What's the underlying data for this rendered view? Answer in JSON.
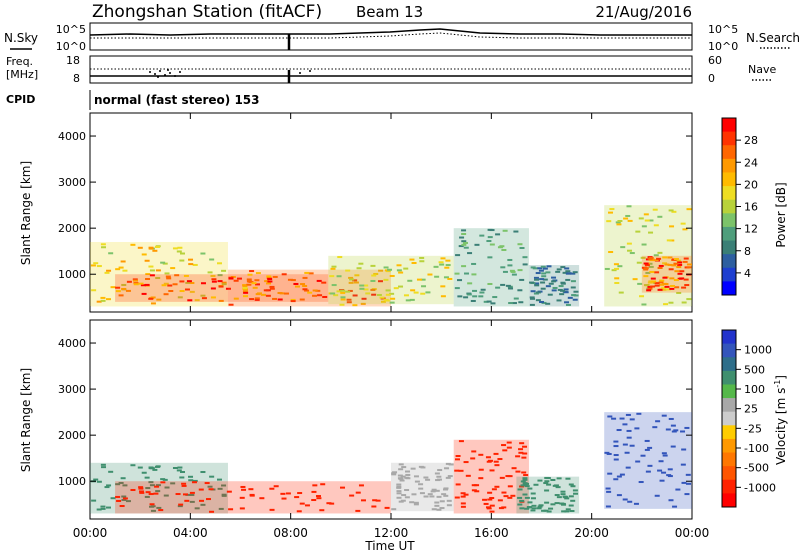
{
  "header": {
    "title": "Zhongshan Station (fitACF)",
    "beam": "Beam 13",
    "date": "21/Aug/2016"
  },
  "noise_panel": {
    "left_label": "N.Sky",
    "left_ticks": [
      "10^5",
      "10^0"
    ],
    "right_ticks": [
      "10^5",
      "10^0"
    ],
    "right_label": "N.Search"
  },
  "freq_panel": {
    "left_label_line1": "Freq.",
    "left_label_line2": "[MHz]",
    "left_ticks": [
      "18",
      "8"
    ],
    "right_ticks": [
      "60",
      "0"
    ],
    "right_label": "Nave"
  },
  "cpid": {
    "label": "CPID",
    "text": "normal (fast stereo) 153"
  },
  "x_axis": {
    "label": "Time UT",
    "ticks": [
      "00:00",
      "04:00",
      "08:00",
      "12:00",
      "16:00",
      "20:00",
      "00:00"
    ]
  },
  "colorbars": {
    "power": {
      "label": "Power [dB]",
      "ticks": [
        "28",
        "24",
        "20",
        "16",
        "12",
        "8",
        "4"
      ],
      "colors": [
        "#ff0000",
        "#ff3300",
        "#ff6600",
        "#ff9900",
        "#ffbb00",
        "#eedd22",
        "#b8d23a",
        "#7cc36a",
        "#4f9e7c",
        "#3a7f76",
        "#2d5fa0",
        "#1e3fd0",
        "#0000ff"
      ]
    },
    "velocity": {
      "label_main": "Velocity",
      "label_unit": "[m s",
      "label_exp": "-1",
      "label_close": "]",
      "ticks": [
        "1000",
        "500",
        "100",
        "25",
        "-25",
        "-100",
        "-500",
        "-1000"
      ],
      "colors": [
        "#2233cc",
        "#3355bb",
        "#2e6e8a",
        "#3f8f6e",
        "#55b84a",
        "#a8a8a8",
        "#cccccc",
        "#ffcc00",
        "#ff9900",
        "#ff7700",
        "#ff5500",
        "#ff2200",
        "#ff0000"
      ]
    }
  },
  "chart_data": [
    {
      "type": "heatmap",
      "title": "Power",
      "xlabel": "Time UT",
      "ylabel": "Slant Range [km]",
      "xlim": [
        "00:00",
        "24:00"
      ],
      "ylim": [
        180,
        4500
      ],
      "y_ticks": [
        1000,
        2000,
        3000,
        4000
      ],
      "colorbar_ticks": [
        4,
        8,
        12,
        16,
        20,
        24,
        28
      ],
      "regions": [
        {
          "t0": 0.0,
          "t1": 5.5,
          "r0": 300,
          "r1": 1700,
          "value": 20
        },
        {
          "t0": 1.0,
          "t1": 9.5,
          "r0": 400,
          "r1": 1000,
          "value": 28
        },
        {
          "t0": 5.5,
          "t1": 12.0,
          "r0": 300,
          "r1": 1100,
          "value": 26
        },
        {
          "t0": 9.5,
          "t1": 14.5,
          "r0": 350,
          "r1": 1400,
          "value": 18
        },
        {
          "t0": 14.5,
          "t1": 17.5,
          "r0": 300,
          "r1": 2000,
          "value": 12
        },
        {
          "t0": 17.5,
          "t1": 19.5,
          "r0": 300,
          "r1": 1200,
          "value": 10
        },
        {
          "t0": 20.5,
          "t1": 24.0,
          "r0": 300,
          "r1": 2500,
          "value": 18
        },
        {
          "t0": 22.0,
          "t1": 24.0,
          "r0": 600,
          "r1": 1400,
          "value": 26
        }
      ]
    },
    {
      "type": "heatmap",
      "title": "Velocity",
      "xlabel": "Time UT",
      "ylabel": "Slant Range [km]",
      "xlim": [
        "00:00",
        "24:00"
      ],
      "ylim": [
        180,
        4500
      ],
      "y_ticks": [
        1000,
        2000,
        3000,
        4000
      ],
      "colorbar_ticks": [
        1000,
        500,
        100,
        25,
        -25,
        -100,
        -500,
        -1000
      ],
      "regions": [
        {
          "t0": 0.0,
          "t1": 5.5,
          "r0": 300,
          "r1": 1400,
          "value": 200
        },
        {
          "t0": 1.0,
          "t1": 12.0,
          "r0": 300,
          "r1": 1000,
          "value": -150
        },
        {
          "t0": 12.0,
          "t1": 14.5,
          "r0": 350,
          "r1": 1400,
          "value": 50
        },
        {
          "t0": 14.5,
          "t1": 17.5,
          "r0": 300,
          "r1": 1900,
          "value": -200
        },
        {
          "t0": 17.0,
          "t1": 19.5,
          "r0": 300,
          "r1": 1100,
          "value": 200
        },
        {
          "t0": 20.5,
          "t1": 24.0,
          "r0": 400,
          "r1": 2500,
          "value": 800
        }
      ]
    }
  ]
}
